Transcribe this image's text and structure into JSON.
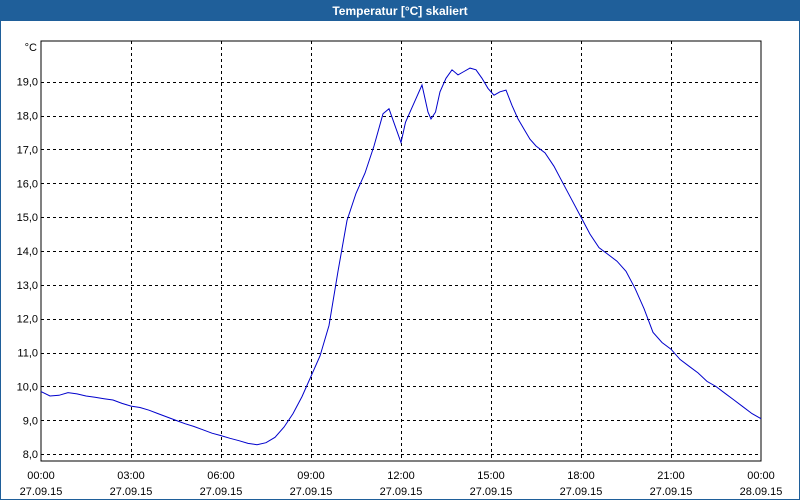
{
  "window": {
    "title": "Temperatur [°C] skaliert"
  },
  "chart_data": {
    "type": "line",
    "title": "Temperatur [°C] skaliert",
    "ylabel": "°C",
    "xlabel": "",
    "ylim": [
      7.8,
      20.2
    ],
    "xlim": [
      0,
      24
    ],
    "grid": true,
    "line_color": "#0000cc",
    "y_ticks": [
      8,
      9,
      10,
      11,
      12,
      13,
      14,
      15,
      16,
      17,
      18,
      19
    ],
    "y_tick_labels": [
      "8,0",
      "9,0",
      "10,0",
      "11,0",
      "12,0",
      "13,0",
      "14,0",
      "15,0",
      "16,0",
      "17,0",
      "18,0",
      "19,0"
    ],
    "x_ticks": [
      {
        "x": 0,
        "time": "00:00",
        "date": "27.09.15"
      },
      {
        "x": 3,
        "time": "03:00",
        "date": "27.09.15"
      },
      {
        "x": 6,
        "time": "06:00",
        "date": "27.09.15"
      },
      {
        "x": 9,
        "time": "09:00",
        "date": "27.09.15"
      },
      {
        "x": 12,
        "time": "12:00",
        "date": "27.09.15"
      },
      {
        "x": 15,
        "time": "15:00",
        "date": "27.09.15"
      },
      {
        "x": 18,
        "time": "18:00",
        "date": "27.09.15"
      },
      {
        "x": 21,
        "time": "21:00",
        "date": "27.09.15"
      },
      {
        "x": 24,
        "time": "00:00",
        "date": "28.09.15"
      }
    ],
    "series": [
      {
        "x": [
          0,
          0.3,
          0.6,
          0.9,
          1.2,
          1.5,
          1.8,
          2.1,
          2.4,
          2.7,
          3.0,
          3.3,
          3.6,
          3.9,
          4.2,
          4.5,
          4.8,
          5.1,
          5.4,
          5.7,
          6.0,
          6.3,
          6.6,
          6.9,
          7.2,
          7.5,
          7.8,
          8.1,
          8.4,
          8.7,
          9.0,
          9.3,
          9.6,
          9.9,
          10.2,
          10.5,
          10.8,
          11.1,
          11.4,
          11.6,
          11.8,
          12.0,
          12.15,
          12.3,
          12.5,
          12.7,
          12.9,
          13.0,
          13.15,
          13.3,
          13.5,
          13.7,
          13.9,
          14.1,
          14.3,
          14.5,
          14.7,
          14.9,
          15.1,
          15.3,
          15.5,
          15.7,
          15.9,
          16.1,
          16.3,
          16.5,
          16.8,
          17.1,
          17.4,
          17.7,
          18.0,
          18.3,
          18.6,
          18.9,
          19.2,
          19.5,
          19.8,
          20.1,
          20.4,
          20.7,
          21.0,
          21.3,
          21.6,
          21.9,
          22.2,
          22.5,
          22.8,
          23.1,
          23.4,
          23.7,
          24.0
        ],
        "y": [
          9.85,
          9.72,
          9.74,
          9.82,
          9.78,
          9.72,
          9.68,
          9.64,
          9.6,
          9.5,
          9.42,
          9.38,
          9.3,
          9.2,
          9.1,
          9.0,
          8.9,
          8.82,
          8.72,
          8.62,
          8.55,
          8.47,
          8.4,
          8.32,
          8.28,
          8.34,
          8.5,
          8.8,
          9.2,
          9.7,
          10.3,
          10.9,
          11.8,
          13.4,
          14.9,
          15.7,
          16.3,
          17.1,
          18.05,
          18.2,
          17.7,
          17.2,
          17.8,
          18.1,
          18.5,
          18.9,
          18.1,
          17.9,
          18.1,
          18.7,
          19.1,
          19.35,
          19.2,
          19.3,
          19.4,
          19.35,
          19.1,
          18.8,
          18.6,
          18.7,
          18.75,
          18.3,
          17.9,
          17.6,
          17.3,
          17.1,
          16.9,
          16.5,
          16.0,
          15.5,
          15.0,
          14.5,
          14.1,
          13.9,
          13.7,
          13.4,
          12.9,
          12.3,
          11.6,
          11.3,
          11.1,
          10.8,
          10.6,
          10.4,
          10.15,
          10.0,
          9.8,
          9.6,
          9.4,
          9.2,
          9.05
        ]
      }
    ]
  }
}
